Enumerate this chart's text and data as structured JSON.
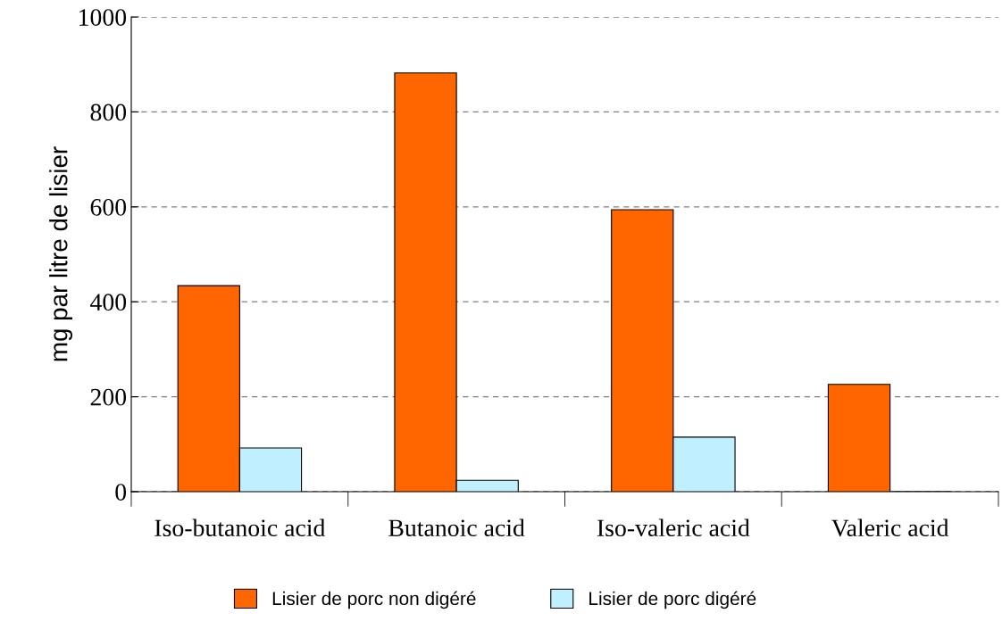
{
  "chart_data": {
    "type": "bar",
    "categories": [
      "Iso-butanoic acid",
      "Butanoic acid",
      "Iso-valeric acid",
      "Valeric acid"
    ],
    "ylabel": "mg par litre de lisier",
    "series": [
      {
        "name": "Lisier de porc non digéré",
        "color": "#ff6600",
        "values": [
          434,
          882,
          594,
          226
        ]
      },
      {
        "name": "Lisier de porc digéré",
        "color": "#c0f0ff",
        "values": [
          92,
          24,
          115,
          0
        ]
      }
    ],
    "ylim": [
      0,
      1000
    ],
    "yticks": [
      0,
      200,
      400,
      600,
      800,
      1000
    ],
    "grid": "y",
    "legend": "bottom"
  }
}
